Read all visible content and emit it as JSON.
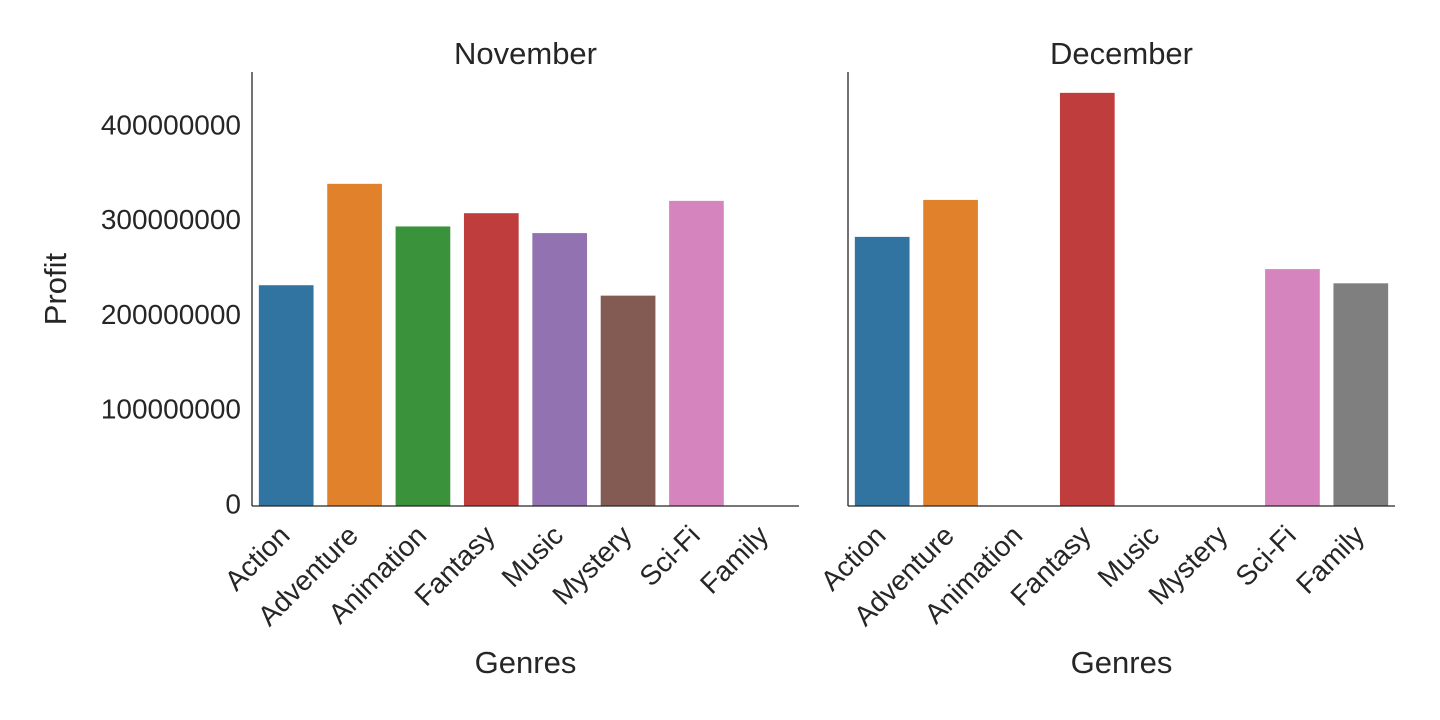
{
  "chart_data": {
    "type": "bar",
    "ylabel": "Profit",
    "ylim": [
      0,
      458000000
    ],
    "yticks": [
      0,
      100000000,
      200000000,
      300000000,
      400000000
    ],
    "ytick_labels": [
      "0",
      "100000000",
      "200000000",
      "300000000",
      "400000000"
    ],
    "categories": [
      "Action",
      "Adventure",
      "Animation",
      "Fantasy",
      "Music",
      "Mystery",
      "Sci-Fi",
      "Family"
    ],
    "colors": [
      "#3274a1",
      "#e1812c",
      "#3a923a",
      "#c03d3e",
      "#9372b2",
      "#845b53",
      "#d684bd",
      "#7f7f7f"
    ],
    "panels": [
      {
        "title": "November",
        "xlabel": "Genres",
        "values": [
          233000000,
          340000000,
          295000000,
          309000000,
          288000000,
          222000000,
          322000000,
          null
        ]
      },
      {
        "title": "December",
        "xlabel": "Genres",
        "values": [
          284000000,
          323000000,
          null,
          436000000,
          null,
          null,
          250000000,
          235000000
        ]
      }
    ]
  }
}
